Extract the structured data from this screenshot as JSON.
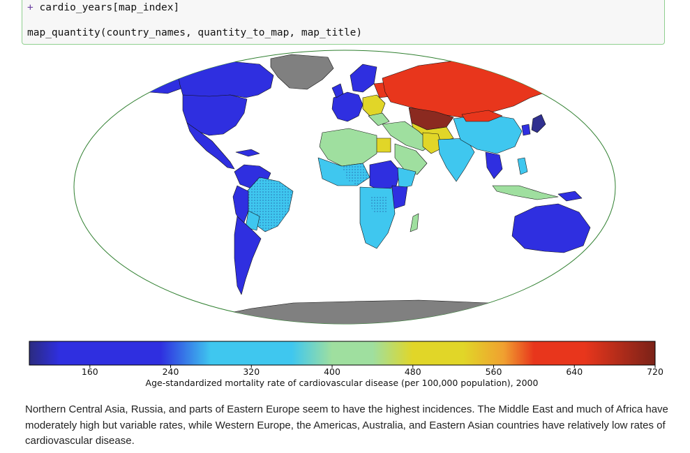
{
  "code": {
    "line1_prefix": "+",
    "line1_code": " cardio_years[map_index]",
    "line2_code": "map_quantity(country_names, quantity_to_map, map_title)"
  },
  "map": {
    "colors": {
      "ocean": "#ffffff",
      "no_data": "#808080",
      "navy": "#30308f",
      "blue": "#2f2fe0",
      "cyan": "#3fc7ef",
      "green": "#9fdf9f",
      "yellow": "#e1d628",
      "orange": "#f0a030",
      "red": "#e8361c",
      "darkred": "#8b2a20",
      "border": "#2f7f2f"
    }
  },
  "colorbar": {
    "tick_labels": [
      "160",
      "240",
      "320",
      "400",
      "480",
      "560",
      "640",
      "720"
    ],
    "tick_values": [
      160,
      240,
      320,
      400,
      480,
      560,
      640,
      720
    ],
    "range": [
      100,
      720
    ],
    "label": "Age-standardized mortality rate of cardiovascular disease (per 100,000 population), 2000",
    "stops": [
      {
        "v": 100,
        "color": "#2b2b7f"
      },
      {
        "v": 130,
        "color": "#2f2fe0"
      },
      {
        "v": 230,
        "color": "#2f2fe0"
      },
      {
        "v": 280,
        "color": "#3fc7ef"
      },
      {
        "v": 360,
        "color": "#3fc7ef"
      },
      {
        "v": 400,
        "color": "#9fdf9f"
      },
      {
        "v": 440,
        "color": "#9fdf9f"
      },
      {
        "v": 480,
        "color": "#e1d628"
      },
      {
        "v": 530,
        "color": "#e1d628"
      },
      {
        "v": 570,
        "color": "#f0a030"
      },
      {
        "v": 600,
        "color": "#e8361c"
      },
      {
        "v": 650,
        "color": "#e8361c"
      },
      {
        "v": 720,
        "color": "#7a2218"
      }
    ]
  },
  "text": {
    "paragraph": "Northern Central Asia, Russia, and parts of Eastern Europe seem to have the highest incidences. The Middle East and much of Africa have moderately high but variable rates, while Western Europe, the Americas, Australia, and Eastern Asian countries have relatively low rates of cardiovascular disease."
  }
}
